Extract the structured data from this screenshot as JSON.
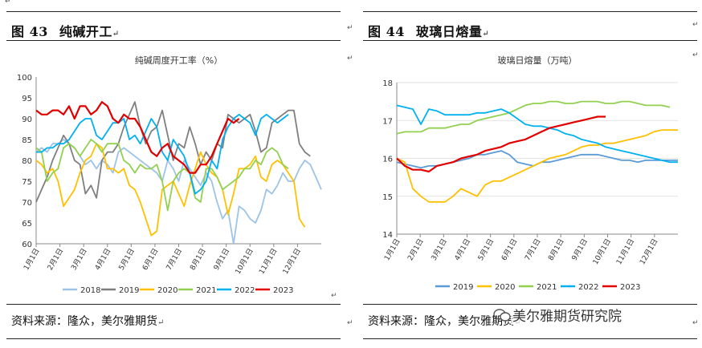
{
  "left": {
    "figure_num": "图 43",
    "figure_title": "纯碱开工",
    "source": "资料来源：隆众，美尔雅期货"
  },
  "right": {
    "figure_num": "图 44",
    "figure_title": "玻璃日熔量",
    "source": "资料来源：隆众，美尔雅期货"
  },
  "watermark": "美尔雅期货研究院",
  "mark_symbol": "↵",
  "colors": {
    "2018": "#9DC3E6",
    "2019": "#7F7F7F",
    "2020": "#FFC000",
    "2021": "#92D050",
    "2022": "#00B0F0",
    "2023": "#E00000",
    "r2019": "#5B9BD5",
    "r2020": "#FFC000",
    "r2021": "#92D050",
    "r2022": "#00B0F0",
    "r2023": "#E00000"
  },
  "chart_data": [
    {
      "type": "line",
      "title": "纯碱周度开工率（%）",
      "ylim": [
        60,
        100
      ],
      "yticks": [
        "60",
        "65",
        "70",
        "75",
        "80",
        "85",
        "90",
        "95",
        "100"
      ],
      "xticks": [
        "1月1日",
        "2月1日",
        "3月1日",
        "4月1日",
        "5月1日",
        "6月1日",
        "7月1日",
        "8月1日",
        "9月1日",
        "10月1日",
        "11月1日",
        "12月1日"
      ],
      "x_unit": "week",
      "legend_position": "bottom",
      "series": [
        {
          "name": "2018",
          "color_key": "2018",
          "values": [
            82,
            83,
            82,
            84,
            84,
            85,
            84,
            83,
            81,
            79,
            80,
            78,
            80,
            79,
            77,
            82,
            83,
            82,
            81,
            80,
            79,
            78,
            77,
            75,
            80,
            78,
            75,
            80,
            78,
            76,
            74,
            77,
            75,
            70,
            66,
            68,
            60,
            69,
            68,
            66,
            65,
            68,
            73,
            72,
            74,
            77,
            75,
            75,
            78,
            80,
            79,
            76,
            73
          ]
        },
        {
          "name": "2019",
          "color_key": "2019",
          "values": [
            70,
            73,
            76,
            80,
            83,
            86,
            84,
            80,
            79,
            72,
            74,
            71,
            80,
            82,
            82,
            84,
            88,
            91,
            94,
            88,
            84,
            87,
            88,
            92,
            86,
            80,
            84,
            83,
            88,
            84,
            79,
            82,
            80,
            84,
            83,
            91,
            90,
            89,
            90,
            91,
            87,
            82,
            83,
            89,
            90,
            91,
            92,
            92,
            84,
            82,
            81
          ]
        },
        {
          "name": "2020",
          "color_key": "2020",
          "values": [
            80,
            79,
            77,
            78,
            75,
            69,
            71,
            73,
            77,
            80,
            81,
            84,
            83,
            78,
            78,
            77,
            78,
            74,
            73,
            70,
            66,
            62,
            63,
            73,
            74,
            75,
            72,
            69,
            74,
            78,
            82,
            79,
            77,
            76,
            73,
            67,
            72,
            78,
            78,
            79,
            81,
            76,
            75,
            79,
            80,
            79,
            77,
            75,
            66,
            64
          ]
        },
        {
          "name": "2021",
          "color_key": "2021",
          "values": [
            83,
            82,
            75,
            77,
            78,
            83,
            84,
            83,
            81,
            83,
            85,
            84,
            82,
            84,
            84,
            84,
            80,
            79,
            77,
            79,
            78,
            78,
            79,
            75,
            68,
            75,
            77,
            78,
            77,
            71,
            70,
            78,
            78,
            76,
            73,
            74,
            75,
            76,
            78,
            78,
            80,
            79,
            82,
            83,
            82,
            79,
            78
          ]
        },
        {
          "name": "2022",
          "color_key": "2022",
          "values": [
            82,
            82,
            83,
            83,
            84,
            84,
            85,
            87,
            89,
            90,
            90,
            86,
            85,
            87,
            89,
            89,
            90,
            85,
            86,
            84,
            87,
            90,
            88,
            82,
            80,
            85,
            83,
            81,
            77,
            72,
            73,
            75,
            80,
            78,
            85,
            88,
            90,
            91,
            90,
            89,
            86,
            90,
            91,
            90,
            89,
            90,
            91
          ]
        },
        {
          "name": "2023",
          "color_key": "2023",
          "values": [
            92,
            91,
            91,
            92,
            92,
            91,
            93,
            90,
            93,
            93,
            91,
            92,
            94,
            93,
            90,
            89,
            91,
            90,
            90,
            88,
            85,
            82,
            81,
            83,
            84,
            81,
            80,
            79,
            77,
            77,
            79,
            79,
            81,
            84,
            87,
            90,
            89,
            90
          ]
        }
      ]
    },
    {
      "type": "line",
      "title": "玻璃日熔量（万吨）",
      "ylim": [
        14,
        18
      ],
      "yticks": [
        "14",
        "15",
        "16",
        "17",
        "18"
      ],
      "xticks": [
        "1月1日",
        "2月1日",
        "3月1日",
        "4月1日",
        "5月1日",
        "6月1日",
        "7月1日",
        "8月1日",
        "9月1日",
        "10月1日",
        "11月1日",
        "12月1日"
      ],
      "x_unit": "day",
      "legend_position": "bottom",
      "series": [
        {
          "name": "2019",
          "color_key": "r2019",
          "values": [
            15.9,
            15.85,
            15.8,
            15.75,
            15.8,
            15.8,
            15.85,
            15.9,
            15.95,
            16.0,
            16.1,
            16.1,
            16.15,
            16.2,
            16.1,
            15.9,
            15.85,
            15.8,
            15.9,
            15.9,
            15.95,
            16.0,
            16.05,
            16.1,
            16.1,
            16.1,
            16.05,
            16.0,
            15.95,
            15.95,
            15.9,
            15.95,
            15.95,
            15.95,
            15.95,
            15.95
          ]
        },
        {
          "name": "2020",
          "color_key": "r2020",
          "values": [
            16.0,
            15.9,
            15.2,
            15.0,
            14.85,
            14.85,
            14.85,
            15.0,
            15.2,
            15.1,
            15.0,
            15.3,
            15.4,
            15.4,
            15.5,
            15.6,
            15.7,
            15.8,
            15.9,
            16.0,
            16.05,
            16.1,
            16.2,
            16.3,
            16.35,
            16.35,
            16.4,
            16.4,
            16.45,
            16.5,
            16.55,
            16.6,
            16.7,
            16.75,
            16.75,
            16.75
          ]
        },
        {
          "name": "2021",
          "color_key": "r2021",
          "values": [
            16.65,
            16.7,
            16.7,
            16.7,
            16.8,
            16.8,
            16.8,
            16.85,
            16.9,
            16.9,
            17.0,
            17.05,
            17.1,
            17.15,
            17.2,
            17.3,
            17.4,
            17.45,
            17.45,
            17.5,
            17.5,
            17.45,
            17.45,
            17.5,
            17.5,
            17.5,
            17.45,
            17.45,
            17.5,
            17.5,
            17.45,
            17.4,
            17.4,
            17.4,
            17.35
          ]
        },
        {
          "name": "2022",
          "color_key": "r2022",
          "values": [
            17.4,
            17.35,
            17.3,
            16.9,
            17.3,
            17.25,
            17.15,
            17.15,
            17.15,
            17.15,
            17.2,
            17.2,
            17.25,
            17.3,
            17.2,
            17.05,
            16.9,
            16.85,
            16.85,
            16.8,
            16.75,
            16.65,
            16.6,
            16.5,
            16.45,
            16.4,
            16.3,
            16.25,
            16.2,
            16.15,
            16.1,
            16.05,
            16.0,
            15.95,
            15.9,
            15.9
          ]
        },
        {
          "name": "2023",
          "color_key": "r2023",
          "values": [
            16.0,
            15.8,
            15.7,
            15.7,
            15.65,
            15.8,
            15.85,
            15.9,
            16.0,
            16.05,
            16.1,
            16.2,
            16.25,
            16.3,
            16.4,
            16.45,
            16.5,
            16.6,
            16.7,
            16.8,
            16.85,
            16.9,
            16.95,
            17.0,
            17.05,
            17.1,
            17.1
          ]
        }
      ]
    }
  ]
}
